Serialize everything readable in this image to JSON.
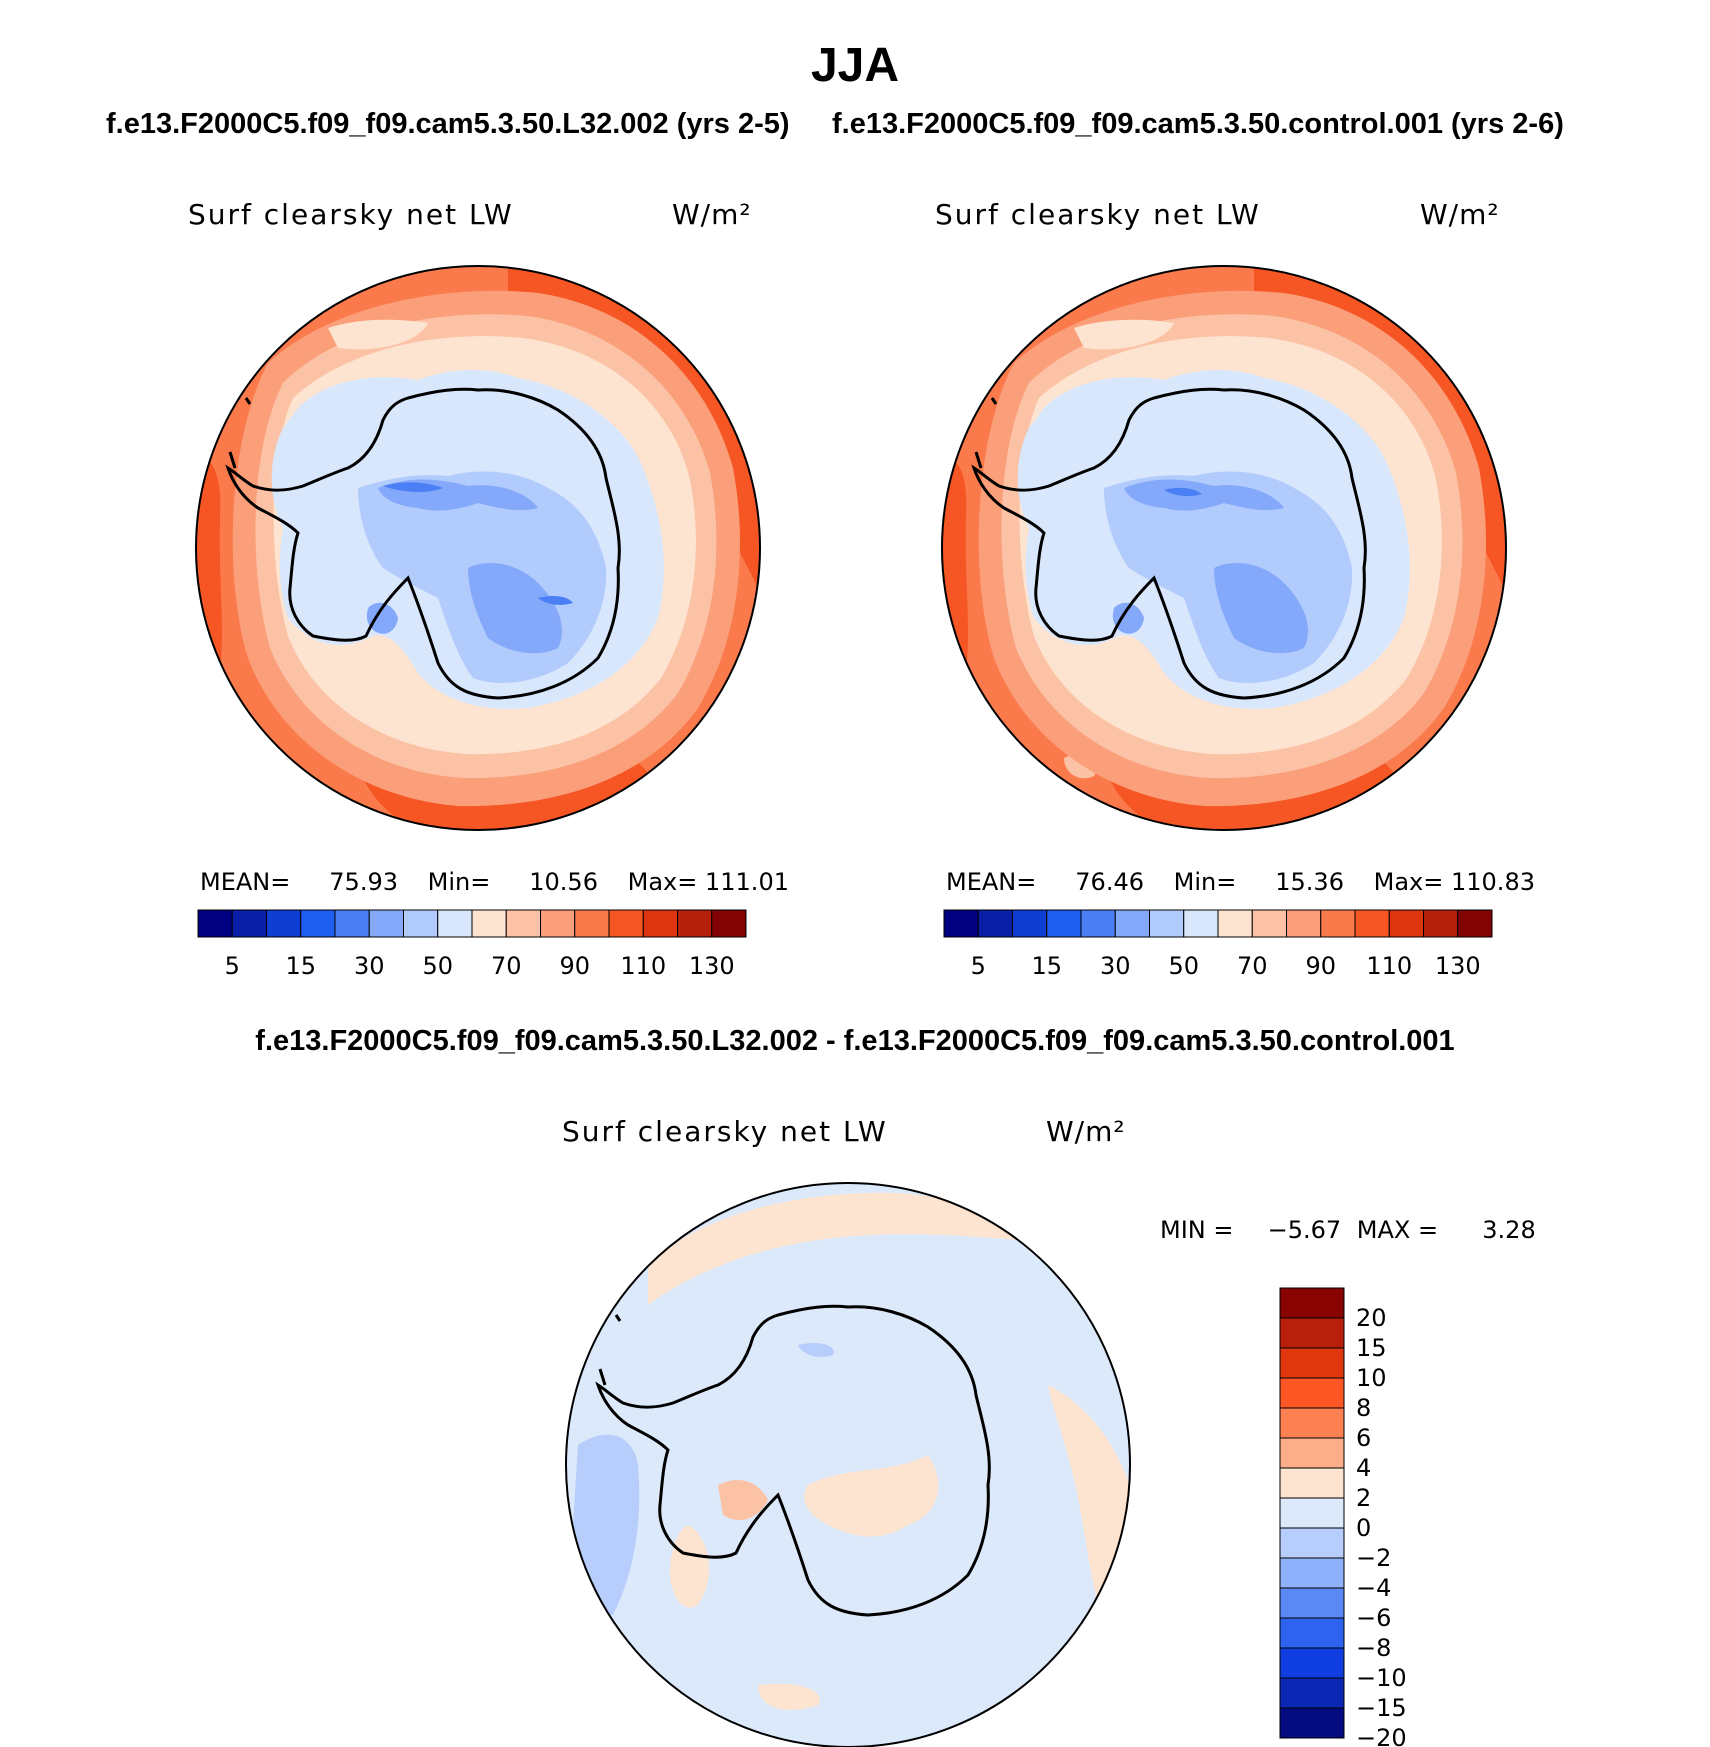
{
  "page": {
    "title": "JJA"
  },
  "panels": [
    {
      "case_title": "f.e13.F2000C5.f09_f09.cam5.3.50.L32.002 (yrs 2-5)",
      "variable": "Surf clearsky net LW",
      "units": "W/m²",
      "stats": {
        "mean_label": "MEAN=",
        "mean": "75.93",
        "min_label": "Min=",
        "min": "10.56",
        "max_label": "Max=",
        "max": "111.01"
      }
    },
    {
      "case_title": "f.e13.F2000C5.f09_f09.cam5.3.50.control.001 (yrs 2-6)",
      "variable": "Surf clearsky net LW",
      "units": "W/m²",
      "stats": {
        "mean_label": "MEAN=",
        "mean": "76.46",
        "min_label": "Min=",
        "min": "15.36",
        "max_label": "Max=",
        "max": "110.83"
      }
    }
  ],
  "abs_colorbar": {
    "colors": [
      "#000080",
      "#0a1fa8",
      "#0f3ed2",
      "#1f5ef0",
      "#4a7ff5",
      "#84a8fa",
      "#b2cbfd",
      "#d9e7fd",
      "#fde4d0",
      "#fcc2a6",
      "#fb9e7a",
      "#fa7a4c",
      "#f55624",
      "#dd3510",
      "#b4200b",
      "#820303"
    ],
    "tick_labels": [
      "5",
      "15",
      "30",
      "50",
      "70",
      "90",
      "110",
      "130"
    ]
  },
  "diff_panel": {
    "case_title": "f.e13.F2000C5.f09_f09.cam5.3.50.L32.002 - f.e13.F2000C5.f09_f09.cam5.3.50.control.001",
    "variable": "Surf clearsky net LW",
    "units": "W/m²",
    "stats": {
      "min_label": "MIN =",
      "min": "−5.67",
      "max_label": "MAX =",
      "max": "3.28"
    }
  },
  "diff_colorbar": {
    "colors_top_to_bottom": [
      "#8a0303",
      "#b9200b",
      "#e0370f",
      "#fb5623",
      "#fc8152",
      "#fcae88",
      "#fde4d0",
      "#dce9fb",
      "#b7cefc",
      "#8fb0fa",
      "#5b88f3",
      "#2d63ee",
      "#0f3fe0",
      "#0a28b4",
      "#040c80"
    ],
    "tick_labels_top_to_bottom": [
      "20",
      "15",
      "10",
      "8",
      "6",
      "4",
      "2",
      "0",
      "−2",
      "−4",
      "−6",
      "−8",
      "−10",
      "−15",
      "−20"
    ]
  },
  "colors": {
    "ocean_warm": "#fa7a4c",
    "ocean_hot": "#f55624",
    "ice_light": "#d9e7fd",
    "ice_mid": "#b2cbfd",
    "ice_blue": "#84a8fa",
    "diff_bg": "#dce9fb",
    "diff_pos": "#fde4d0",
    "diff_neg": "#b7cefc"
  }
}
